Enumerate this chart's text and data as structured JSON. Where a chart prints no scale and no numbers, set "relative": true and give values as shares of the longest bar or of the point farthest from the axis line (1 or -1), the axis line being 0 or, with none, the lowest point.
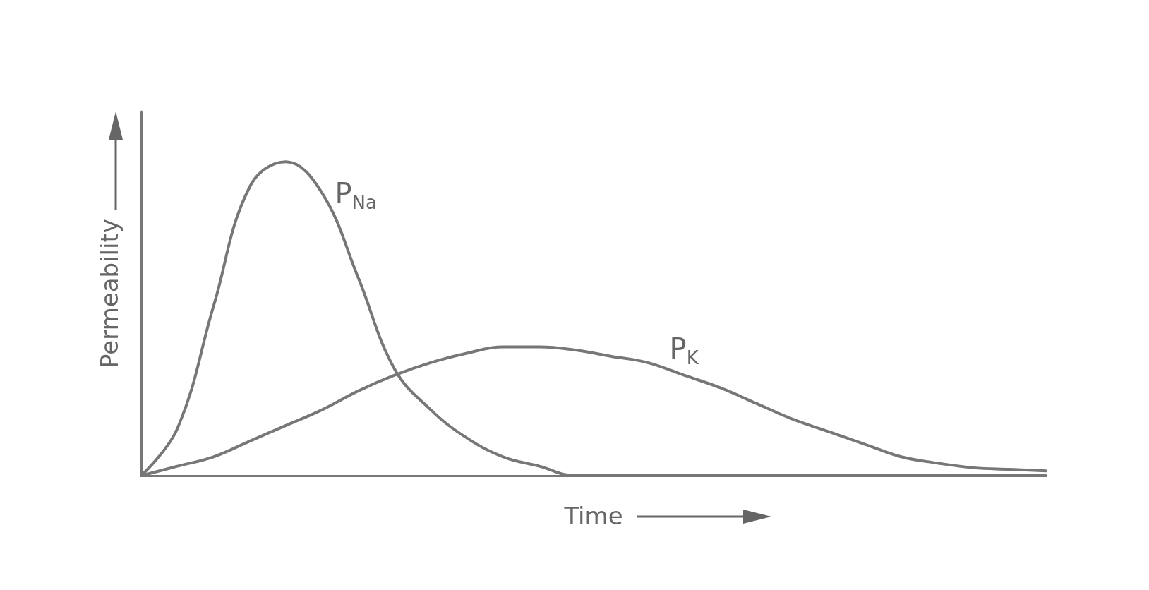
{
  "chart_data": {
    "type": "line",
    "relative": true,
    "xlabel": "Time",
    "ylabel": "Permeability",
    "marker": "none",
    "line_style": "solid",
    "categories": [
      null,
      null,
      null,
      null,
      null,
      null,
      null,
      null,
      null,
      null,
      null,
      null,
      null,
      null,
      null,
      null,
      null,
      null,
      null,
      null,
      null,
      null,
      null,
      null,
      null,
      null
    ],
    "series": [
      {
        "name": "P$_{Na}$",
        "color": "#777777",
        "values": [
          0,
          0.15,
          0.54,
          0.92,
          1,
          0.9,
          0.63,
          0.34,
          0.21,
          0.12,
          0.06,
          0.03,
          0,
          0,
          0,
          0,
          0,
          0,
          0,
          0,
          0,
          0,
          0,
          0,
          0,
          0
        ]
      },
      {
        "name": "P$_{K}$",
        "color": "#777777",
        "values": [
          0,
          0.03,
          0.06,
          0.11,
          0.16,
          0.21,
          0.27,
          0.32,
          0.36,
          0.39,
          0.41,
          0.41,
          0.4,
          0.38,
          0.36,
          0.32,
          0.28,
          0.23,
          0.18,
          0.14,
          0.1,
          0.06,
          0.04,
          0.025,
          0.02,
          0.015
        ]
      }
    ]
  }
}
